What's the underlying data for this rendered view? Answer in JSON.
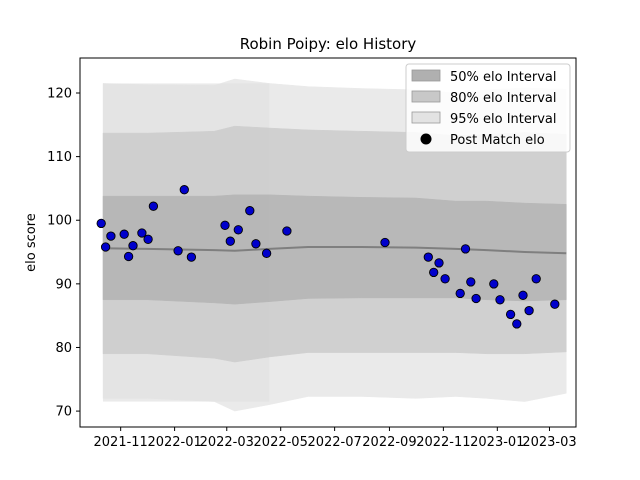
{
  "chart_data": {
    "type": "area",
    "title": "Robin Poipy: elo History",
    "xlabel": "",
    "ylabel": "elo score",
    "xlim": [
      "2021-09-16",
      "2023-03-31"
    ],
    "ylim": [
      67.5,
      125.5
    ],
    "yticks": [
      70,
      80,
      90,
      100,
      110,
      120
    ],
    "xticks": [
      {
        "date": "2021-11-01",
        "label": "2021-11"
      },
      {
        "date": "2022-01-01",
        "label": "2022-01"
      },
      {
        "date": "2022-03-01",
        "label": "2022-03"
      },
      {
        "date": "2022-05-01",
        "label": "2022-05"
      },
      {
        "date": "2022-07-01",
        "label": "2022-07"
      },
      {
        "date": "2022-09-01",
        "label": "2022-09"
      },
      {
        "date": "2022-11-01",
        "label": "2022-11"
      },
      {
        "date": "2023-01-01",
        "label": "2023-01"
      },
      {
        "date": "2023-03-01",
        "label": "2023-03"
      }
    ],
    "grid": false,
    "legend": {
      "placement": "top-right",
      "entries": [
        {
          "label": "50% elo Interval",
          "color": "#b0b0b0"
        },
        {
          "label": "80% elo Interval",
          "color": "#c8c8c8"
        },
        {
          "label": "95% elo Interval",
          "color": "#e3e3e3"
        },
        {
          "label": "Post Match elo",
          "color": "#000000"
        }
      ]
    },
    "bands": [
      {
        "name": "95% elo Interval",
        "color": "#e3e3e3",
        "points": [
          {
            "date": "2021-10-12",
            "lo": 72.0,
            "hi": 121.5
          },
          {
            "date": "2021-12-01",
            "lo": 72.0,
            "hi": 121.3
          },
          {
            "date": "2022-02-15",
            "lo": 71.5,
            "hi": 121.2
          },
          {
            "date": "2022-03-10",
            "lo": 70.0,
            "hi": 122.2
          },
          {
            "date": "2022-04-18",
            "lo": 71.0,
            "hi": 121.5
          },
          {
            "date": "2022-06-01",
            "lo": 72.3,
            "hi": 121.0
          },
          {
            "date": "2022-08-01",
            "lo": 72.3,
            "hi": 120.7
          },
          {
            "date": "2022-10-01",
            "lo": 72.0,
            "hi": 120.5
          },
          {
            "date": "2022-11-15",
            "lo": 72.3,
            "hi": 120.0
          },
          {
            "date": "2022-12-20",
            "lo": 72.0,
            "hi": 120.5
          },
          {
            "date": "2023-02-01",
            "lo": 71.5,
            "hi": 120.8
          },
          {
            "date": "2023-03-20",
            "lo": 72.8,
            "hi": 120.6
          }
        ]
      },
      {
        "name": "80% elo Interval",
        "color": "#c8c8c8",
        "points": [
          {
            "date": "2021-10-12",
            "lo": 79.0,
            "hi": 113.7
          },
          {
            "date": "2021-12-01",
            "lo": 79.0,
            "hi": 113.7
          },
          {
            "date": "2022-02-15",
            "lo": 78.3,
            "hi": 114.0
          },
          {
            "date": "2022-03-10",
            "lo": 77.7,
            "hi": 114.8
          },
          {
            "date": "2022-04-18",
            "lo": 78.5,
            "hi": 114.5
          },
          {
            "date": "2022-06-01",
            "lo": 79.2,
            "hi": 114.2
          },
          {
            "date": "2022-08-01",
            "lo": 79.2,
            "hi": 114.0
          },
          {
            "date": "2022-10-01",
            "lo": 79.2,
            "hi": 113.8
          },
          {
            "date": "2022-11-15",
            "lo": 79.2,
            "hi": 113.3
          },
          {
            "date": "2022-12-20",
            "lo": 79.0,
            "hi": 113.5
          },
          {
            "date": "2023-02-01",
            "lo": 79.0,
            "hi": 113.8
          },
          {
            "date": "2023-03-20",
            "lo": 79.3,
            "hi": 113.5
          }
        ]
      },
      {
        "name": "50% elo Interval",
        "color": "#b0b0b0",
        "points": [
          {
            "date": "2021-10-12",
            "lo": 87.5,
            "hi": 103.8
          },
          {
            "date": "2021-12-01",
            "lo": 87.5,
            "hi": 103.8
          },
          {
            "date": "2022-02-15",
            "lo": 87.0,
            "hi": 103.8
          },
          {
            "date": "2022-03-10",
            "lo": 86.8,
            "hi": 104.0
          },
          {
            "date": "2022-04-18",
            "lo": 87.2,
            "hi": 104.0
          },
          {
            "date": "2022-06-01",
            "lo": 87.7,
            "hi": 103.8
          },
          {
            "date": "2022-08-01",
            "lo": 87.8,
            "hi": 103.6
          },
          {
            "date": "2022-10-01",
            "lo": 87.8,
            "hi": 103.5
          },
          {
            "date": "2022-11-15",
            "lo": 87.8,
            "hi": 103.0
          },
          {
            "date": "2022-12-20",
            "lo": 87.5,
            "hi": 103.0
          },
          {
            "date": "2023-02-01",
            "lo": 87.3,
            "hi": 102.7
          },
          {
            "date": "2023-03-20",
            "lo": 87.5,
            "hi": 102.5
          }
        ]
      }
    ],
    "shaded_region": {
      "from": "2021-10-12",
      "to": "2022-04-18",
      "lo": 71.5,
      "hi": 121.5,
      "color": "#e3e3e3"
    },
    "series": [
      {
        "name": "Post Match elo",
        "type": "scatter",
        "color": "#0000cc",
        "points": [
          {
            "date": "2021-10-10",
            "y": 99.5
          },
          {
            "date": "2021-10-15",
            "y": 95.8
          },
          {
            "date": "2021-10-21",
            "y": 97.5
          },
          {
            "date": "2021-11-05",
            "y": 97.8
          },
          {
            "date": "2021-11-10",
            "y": 94.3
          },
          {
            "date": "2021-11-15",
            "y": 96.0
          },
          {
            "date": "2021-11-25",
            "y": 98.0
          },
          {
            "date": "2021-12-02",
            "y": 97.0
          },
          {
            "date": "2021-12-08",
            "y": 102.2
          },
          {
            "date": "2022-01-05",
            "y": 95.2
          },
          {
            "date": "2022-01-12",
            "y": 104.8
          },
          {
            "date": "2022-01-20",
            "y": 94.2
          },
          {
            "date": "2022-02-27",
            "y": 99.2
          },
          {
            "date": "2022-03-05",
            "y": 96.7
          },
          {
            "date": "2022-03-14",
            "y": 98.5
          },
          {
            "date": "2022-03-27",
            "y": 101.5
          },
          {
            "date": "2022-04-03",
            "y": 96.3
          },
          {
            "date": "2022-04-15",
            "y": 94.8
          },
          {
            "date": "2022-05-08",
            "y": 98.3
          },
          {
            "date": "2022-08-27",
            "y": 96.5
          },
          {
            "date": "2022-10-15",
            "y": 94.2
          },
          {
            "date": "2022-10-21",
            "y": 91.8
          },
          {
            "date": "2022-10-27",
            "y": 93.3
          },
          {
            "date": "2022-11-03",
            "y": 90.8
          },
          {
            "date": "2022-11-20",
            "y": 88.5
          },
          {
            "date": "2022-11-26",
            "y": 95.5
          },
          {
            "date": "2022-12-02",
            "y": 90.3
          },
          {
            "date": "2022-12-08",
            "y": 87.7
          },
          {
            "date": "2022-12-28",
            "y": 90.0
          },
          {
            "date": "2023-01-04",
            "y": 87.5
          },
          {
            "date": "2023-01-16",
            "y": 85.2
          },
          {
            "date": "2023-01-23",
            "y": 83.7
          },
          {
            "date": "2023-01-30",
            "y": 88.2
          },
          {
            "date": "2023-02-06",
            "y": 85.8
          },
          {
            "date": "2023-02-14",
            "y": 90.8
          },
          {
            "date": "2023-03-07",
            "y": 86.8
          }
        ]
      },
      {
        "name": "mean",
        "type": "line",
        "color": "#7f7f7f",
        "points": [
          {
            "date": "2021-10-12",
            "y": 95.6
          },
          {
            "date": "2021-12-01",
            "y": 95.5
          },
          {
            "date": "2022-02-15",
            "y": 95.3
          },
          {
            "date": "2022-03-10",
            "y": 95.2
          },
          {
            "date": "2022-04-18",
            "y": 95.5
          },
          {
            "date": "2022-06-01",
            "y": 95.8
          },
          {
            "date": "2022-08-01",
            "y": 95.8
          },
          {
            "date": "2022-10-01",
            "y": 95.7
          },
          {
            "date": "2022-11-15",
            "y": 95.5
          },
          {
            "date": "2022-12-20",
            "y": 95.3
          },
          {
            "date": "2023-02-01",
            "y": 95.0
          },
          {
            "date": "2023-03-20",
            "y": 94.8
          }
        ]
      }
    ]
  }
}
